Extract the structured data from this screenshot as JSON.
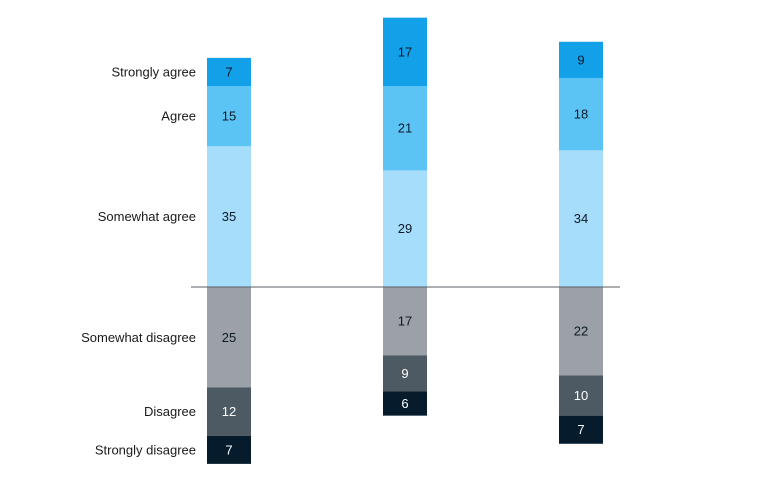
{
  "chart_data": {
    "type": "bar",
    "stacked": "diverging",
    "categories": [
      "Strongly agree",
      "Agree",
      "Somewhat agree",
      "Somewhat disagree",
      "Disagree",
      "Strongly disagree"
    ],
    "colors": {
      "Strongly agree": "#12a0e8",
      "Agree": "#5cc4f4",
      "Somewhat agree": "#a6ddfb",
      "Somewhat disagree": "#9ba1a7",
      "Disagree": "#4e5a63",
      "Strongly disagree": "#061c2c"
    },
    "text_colors": {
      "Strongly agree": "#0b1a26",
      "Agree": "#0b1a26",
      "Somewhat agree": "#0b1a26",
      "Somewhat disagree": "#0b1a26",
      "Disagree": "#ffffff",
      "Strongly disagree": "#ffffff"
    },
    "series": [
      {
        "values": [
          7,
          15,
          35,
          25,
          12,
          7
        ]
      },
      {
        "values": [
          17,
          21,
          29,
          17,
          9,
          6
        ]
      },
      {
        "values": [
          9,
          18,
          34,
          22,
          10,
          7
        ]
      }
    ],
    "grid": false,
    "legend": "left"
  }
}
